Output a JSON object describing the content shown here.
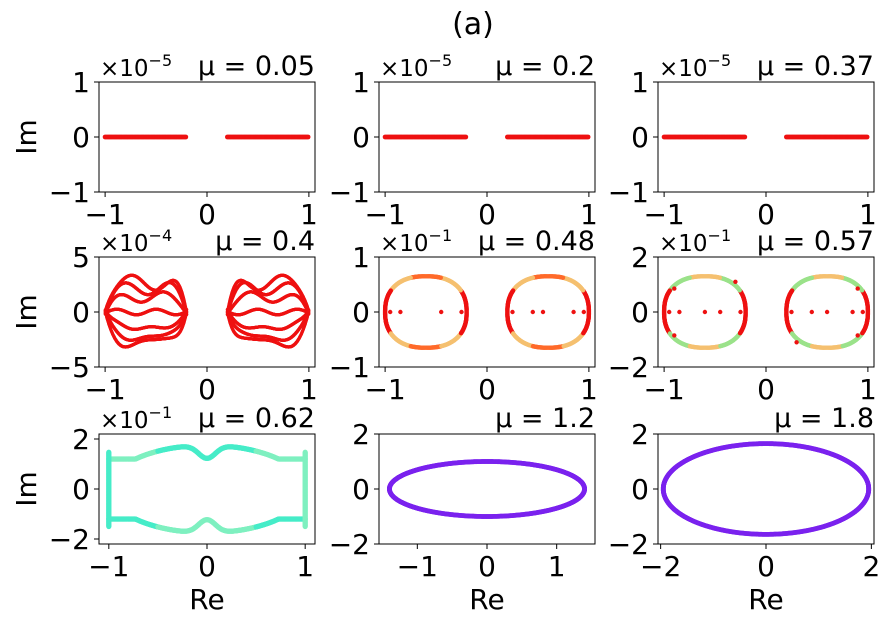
{
  "figure": {
    "title": "(a)",
    "ylabel": "Im",
    "xlabel": "Re"
  },
  "chart_data": [
    {
      "type": "scatter",
      "row": 0,
      "col": 0,
      "title": "μ = 0.05",
      "multiplier_base": "×10",
      "multiplier_exp": "−5",
      "xlim": [
        -1.06,
        1.06
      ],
      "ylim": [
        -1,
        1
      ],
      "xticks": [
        -1,
        0,
        1
      ],
      "xtick_labels": [
        "−1",
        "0",
        "1"
      ],
      "yticks": [
        -1,
        0,
        1
      ],
      "ytick_labels": [
        "−1",
        "0",
        "1"
      ],
      "shape": "segments",
      "segments": [
        [
          -1,
          -0.2
        ],
        [
          0.2,
          1
        ]
      ],
      "colors": [
        "#ee1111"
      ]
    },
    {
      "type": "scatter",
      "row": 0,
      "col": 1,
      "title": "μ = 0.2",
      "multiplier_base": "×10",
      "multiplier_exp": "−5",
      "xlim": [
        -1.06,
        1.06
      ],
      "ylim": [
        -1,
        1
      ],
      "xticks": [
        -1,
        0,
        1
      ],
      "xtick_labels": [
        "−1",
        "0",
        "1"
      ],
      "yticks": [
        -1,
        0,
        1
      ],
      "ytick_labels": [
        "−1",
        "0",
        "1"
      ],
      "shape": "segments",
      "segments": [
        [
          -1,
          -0.2
        ],
        [
          0.2,
          1
        ]
      ],
      "colors": [
        "#ee1111"
      ]
    },
    {
      "type": "scatter",
      "row": 0,
      "col": 2,
      "title": "μ = 0.37",
      "multiplier_base": "×10",
      "multiplier_exp": "−5",
      "xlim": [
        -1.06,
        1.06
      ],
      "ylim": [
        -1,
        1
      ],
      "xticks": [
        -1,
        0,
        1
      ],
      "xtick_labels": [
        "−1",
        "0",
        "1"
      ],
      "yticks": [
        -1,
        0,
        1
      ],
      "ytick_labels": [
        "−1",
        "0",
        "1"
      ],
      "shape": "segments",
      "segments": [
        [
          -1,
          -0.2
        ],
        [
          0.2,
          1
        ]
      ],
      "colors": [
        "#ee1111"
      ]
    },
    {
      "type": "scatter",
      "row": 1,
      "col": 0,
      "title": "μ = 0.4",
      "multiplier_base": "×10",
      "multiplier_exp": "−4",
      "xlim": [
        -1.06,
        1.06
      ],
      "ylim": [
        -5,
        5
      ],
      "xticks": [
        -1,
        0,
        1
      ],
      "xtick_labels": [
        "−1",
        "0",
        "1"
      ],
      "yticks": [
        -5,
        0,
        5
      ],
      "ytick_labels": [
        "−5",
        "0",
        "5"
      ],
      "shape": "wiggle",
      "colors": [
        "#ee1111"
      ]
    },
    {
      "type": "scatter",
      "row": 1,
      "col": 1,
      "title": "μ = 0.48",
      "multiplier_base": "×10",
      "multiplier_exp": "−1",
      "xlim": [
        -1.06,
        1.06
      ],
      "ylim": [
        -1,
        1
      ],
      "xticks": [
        -1,
        0,
        1
      ],
      "xtick_labels": [
        "−1",
        "0",
        "1"
      ],
      "yticks": [
        -1,
        0,
        1
      ],
      "ytick_labels": [
        "−1",
        "0",
        "1"
      ],
      "shape": "loops",
      "loop_ry": 0.65,
      "dots_x": [
        -0.95,
        -0.85,
        -0.45,
        -0.25,
        0.25,
        0.45,
        0.55,
        0.85,
        0.95
      ],
      "colors": [
        "#ee1111",
        "#f5c070",
        "#ff6a2a"
      ]
    },
    {
      "type": "scatter",
      "row": 1,
      "col": 2,
      "title": "μ = 0.57",
      "multiplier_base": "×10",
      "multiplier_exp": "−1",
      "xlim": [
        -1.06,
        1.06
      ],
      "ylim": [
        -2,
        2
      ],
      "xticks": [
        -1,
        0,
        1
      ],
      "xtick_labels": [
        "−1",
        "0",
        "1"
      ],
      "yticks": [
        -2,
        0,
        2
      ],
      "ytick_labels": [
        "−2",
        "0",
        "2"
      ],
      "shape": "loops",
      "loop_ry": 1.3,
      "dots_x": [
        -0.95,
        -0.85,
        -0.6,
        -0.45,
        -0.25,
        0.25,
        0.45,
        0.6,
        0.85,
        0.95
      ],
      "colors": [
        "#ee1111",
        "#9be28a",
        "#f5c070"
      ]
    },
    {
      "type": "scatter",
      "row": 2,
      "col": 0,
      "title": "μ = 0.62",
      "multiplier_base": "×10",
      "multiplier_exp": "−1",
      "xlim": [
        -1.1,
        1.1
      ],
      "ylim": [
        -2.2,
        2.2
      ],
      "xticks": [
        -1,
        0,
        1
      ],
      "xtick_labels": [
        "−1",
        "0",
        "1"
      ],
      "yticks": [
        -2,
        0,
        2
      ],
      "ytick_labels": [
        "−2",
        "0",
        "2"
      ],
      "shape": "peanut",
      "colors": [
        "#46ecc8",
        "#7ff0c0"
      ]
    },
    {
      "type": "scatter",
      "row": 2,
      "col": 1,
      "title": "μ = 1.2",
      "multiplier_base": "",
      "multiplier_exp": "",
      "xlim": [
        -1.55,
        1.55
      ],
      "ylim": [
        -2,
        2
      ],
      "xticks": [
        -1,
        0,
        1
      ],
      "xtick_labels": [
        "−1",
        "0",
        "1"
      ],
      "yticks": [
        -2,
        0,
        2
      ],
      "ytick_labels": [
        "−2",
        "0",
        "2"
      ],
      "shape": "ellipse",
      "rx": 1.4,
      "ry": 1.0,
      "colors": [
        "#7a22ee"
      ]
    },
    {
      "type": "scatter",
      "row": 2,
      "col": 2,
      "title": "μ = 1.8",
      "multiplier_base": "",
      "multiplier_exp": "",
      "xlim": [
        -2.05,
        2.05
      ],
      "ylim": [
        -2,
        2
      ],
      "xticks": [
        -2,
        0,
        2
      ],
      "xtick_labels": [
        "−2",
        "0",
        "2"
      ],
      "yticks": [
        -2,
        0,
        2
      ],
      "ytick_labels": [
        "−2",
        "0",
        "2"
      ],
      "shape": "ellipse",
      "rx": 1.95,
      "ry": 1.65,
      "colors": [
        "#7a22ee"
      ]
    }
  ]
}
